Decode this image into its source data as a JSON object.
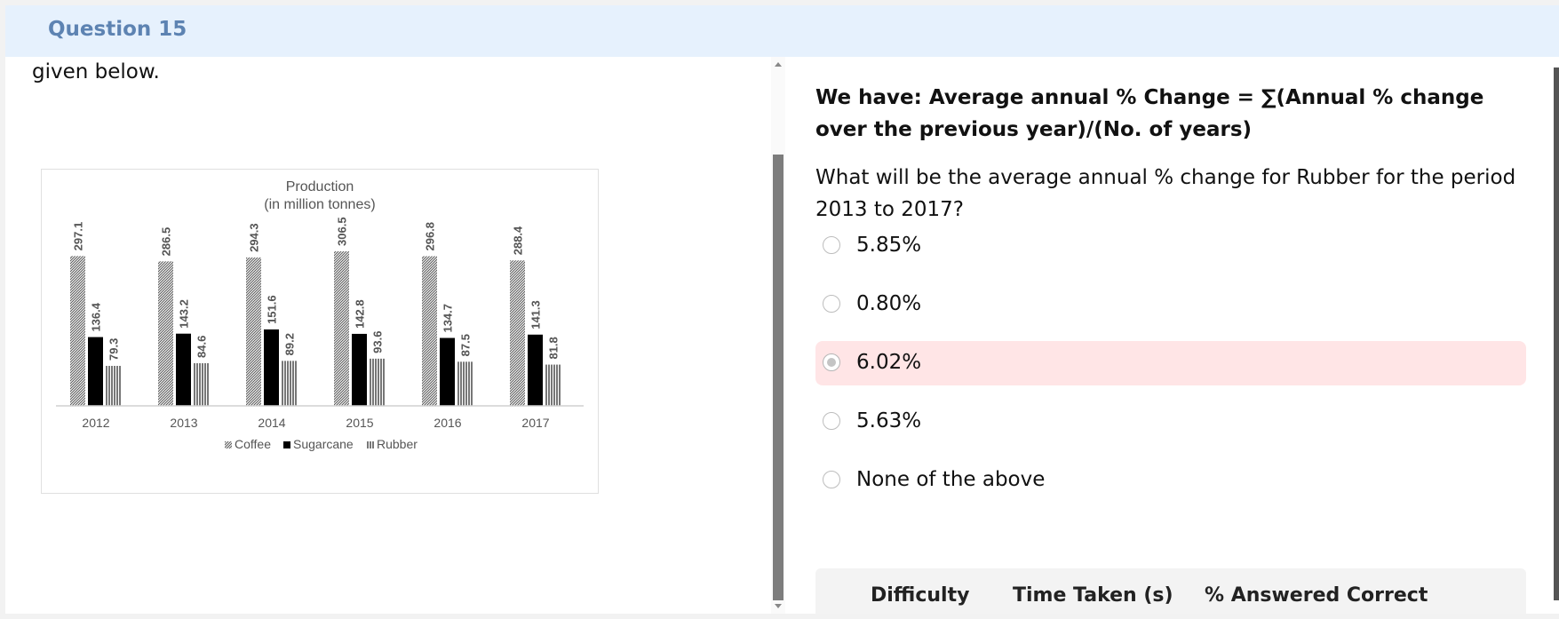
{
  "header": {
    "title": "Question 15"
  },
  "left": {
    "text_fragment": "given below."
  },
  "chart_data": {
    "type": "bar",
    "title": "Production",
    "subtitle": "(in million tonnes)",
    "categories": [
      "2012",
      "2013",
      "2014",
      "2015",
      "2016",
      "2017"
    ],
    "series": [
      {
        "name": "Coffee",
        "values": [
          297.1,
          286.5,
          294.3,
          306.5,
          296.8,
          288.4
        ]
      },
      {
        "name": "Sugarcane",
        "values": [
          136.4,
          143.2,
          151.6,
          142.8,
          134.7,
          141.3
        ]
      },
      {
        "name": "Rubber",
        "values": [
          79.3,
          84.6,
          89.2,
          93.6,
          87.5,
          81.8
        ]
      }
    ],
    "ylim": [
      0,
      310
    ],
    "grid": false,
    "legend": "bottom",
    "colors": {
      "Coffee": "#9a9a9a",
      "Sugarcane": "#000000",
      "Rubber": "#7a7a7a"
    }
  },
  "explanation": "We have: Average annual % Change = ∑(Annual % change over the previous year)/(No. of years)",
  "question": "What will be the average annual % change for Rubber for the period 2013 to 2017?",
  "options": [
    {
      "label": "5.85%",
      "selected": false
    },
    {
      "label": "0.80%",
      "selected": false
    },
    {
      "label": "6.02%",
      "selected": true
    },
    {
      "label": "5.63%",
      "selected": false
    },
    {
      "label": "None of the above",
      "selected": false
    }
  ],
  "stats": {
    "difficulty": "Difficulty",
    "time_taken": "Time Taken (s)",
    "answered_correct": "% Answered Correct"
  },
  "colors": {
    "header_bg": "#e6f1fd",
    "header_text": "#5d83b2",
    "selected_bg": "#ffe5e6"
  }
}
